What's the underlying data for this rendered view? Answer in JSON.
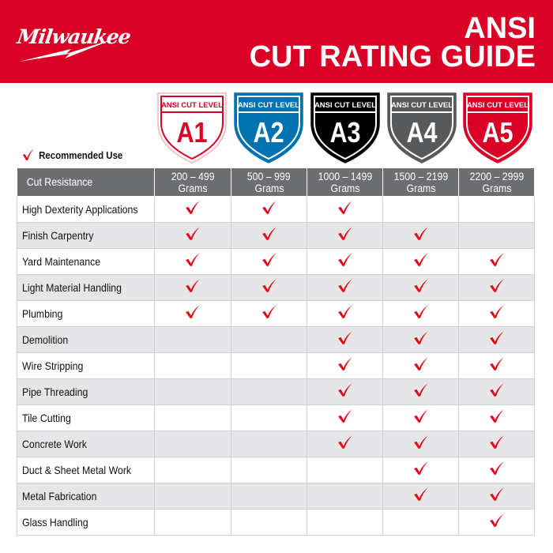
{
  "header": {
    "brand": "Milwaukee",
    "title_line1": "ANSI",
    "title_line2": "CUT RATING GUIDE",
    "color": "#da0025"
  },
  "levels": [
    {
      "label": "ANSI CUT LEVEL",
      "level": "A1",
      "fill": "#ffffff",
      "text": "#da0025",
      "range": "200 – 499",
      "unit": "Grams"
    },
    {
      "label": "ANSI CUT LEVEL",
      "level": "A2",
      "fill": "#0072b0",
      "text": "#ffffff",
      "range": "500 – 999",
      "unit": "Grams"
    },
    {
      "label": "ANSI CUT LEVEL",
      "level": "A3",
      "fill": "#000000",
      "text": "#ffffff",
      "range": "1000 – 1499",
      "unit": "Grams"
    },
    {
      "label": "ANSI CUT LEVEL",
      "level": "A4",
      "fill": "#58595b",
      "text": "#ffffff",
      "range": "1500 – 2199",
      "unit": "Grams"
    },
    {
      "label": "ANSI CUT LEVEL",
      "level": "A5",
      "fill": "#da0025",
      "text": "#ffffff",
      "range": "2200 – 2999",
      "unit": "Grams"
    }
  ],
  "legend": {
    "label": "Recommended Use",
    "icon": "check-icon",
    "check_color": "#e30613"
  },
  "table": {
    "header": "Cut Resistance",
    "rows": [
      {
        "use": "High Dexterity Applications",
        "checks": [
          1,
          1,
          1,
          0,
          0
        ]
      },
      {
        "use": "Finish Carpentry",
        "checks": [
          1,
          1,
          1,
          1,
          0
        ]
      },
      {
        "use": "Yard Maintenance",
        "checks": [
          1,
          1,
          1,
          1,
          1
        ]
      },
      {
        "use": "Light Material Handling",
        "checks": [
          1,
          1,
          1,
          1,
          1
        ]
      },
      {
        "use": "Plumbing",
        "checks": [
          1,
          1,
          1,
          1,
          1
        ]
      },
      {
        "use": "Demolition",
        "checks": [
          0,
          0,
          1,
          1,
          1
        ]
      },
      {
        "use": "Wire Stripping",
        "checks": [
          0,
          0,
          1,
          1,
          1
        ]
      },
      {
        "use": "Pipe Threading",
        "checks": [
          0,
          0,
          1,
          1,
          1
        ]
      },
      {
        "use": "Tile Cutting",
        "checks": [
          0,
          0,
          1,
          1,
          1
        ]
      },
      {
        "use": "Concrete Work",
        "checks": [
          0,
          0,
          1,
          1,
          1
        ]
      },
      {
        "use": "Duct & Sheet Metal Work",
        "checks": [
          0,
          0,
          0,
          1,
          1
        ]
      },
      {
        "use": "Metal Fabrication",
        "checks": [
          0,
          0,
          0,
          1,
          1
        ]
      },
      {
        "use": "Glass Handling",
        "checks": [
          0,
          0,
          0,
          0,
          1
        ]
      }
    ]
  }
}
